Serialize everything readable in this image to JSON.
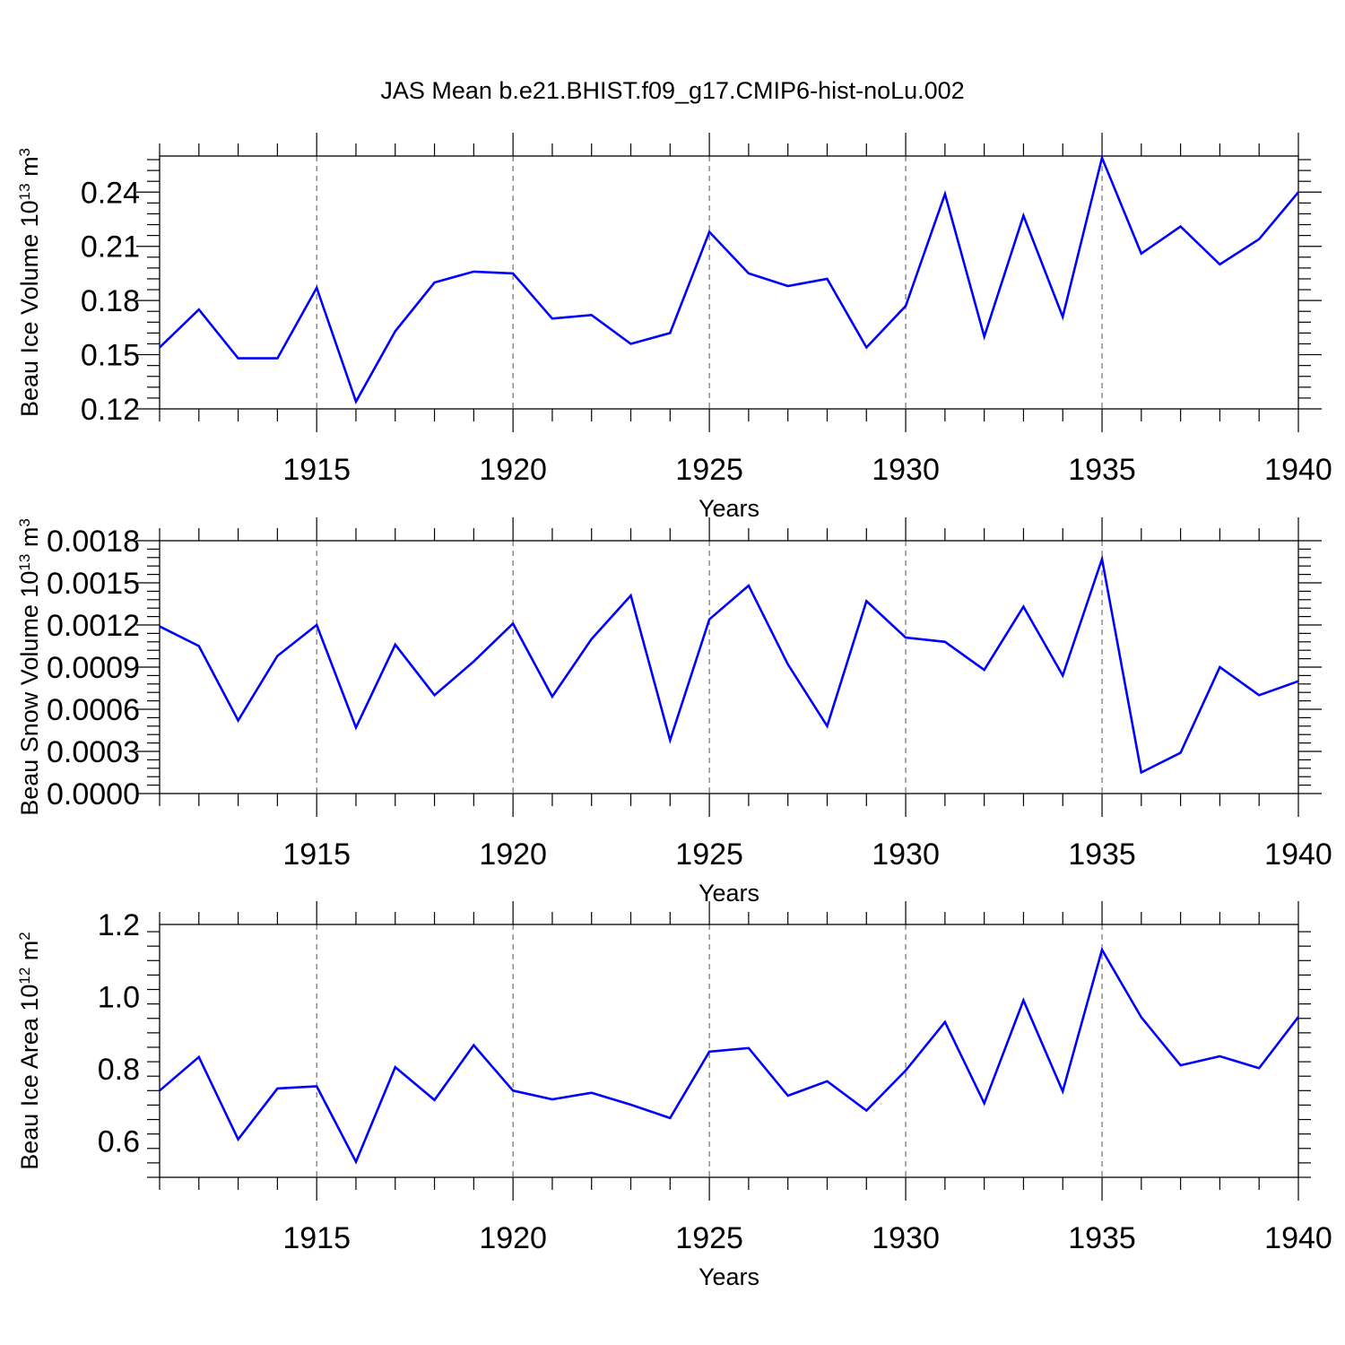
{
  "title": "JAS Mean b.e21.BHIST.f09_g17.CMIP6-hist-noLu.002",
  "colors": {
    "line": "#0000ff",
    "grid": "#555555",
    "axes": "#000000"
  },
  "chart_data": [
    {
      "type": "line",
      "ylabel_text": "Beau Ice Volume 10",
      "ylabel_exp": "13",
      "ylabel_unit": " m",
      "ylabel_unit_exp": "3",
      "xlabel": "Years",
      "xlim": [
        1911,
        1940
      ],
      "ylim": [
        0.12,
        0.26
      ],
      "yticks": [
        0.12,
        0.15,
        0.18,
        0.21,
        0.24
      ],
      "ytick_labels": [
        "0.12",
        "0.15",
        "0.18",
        "0.21",
        "0.24"
      ],
      "xticks": [
        1915,
        1920,
        1925,
        1930,
        1935,
        1940
      ],
      "xtick_labels": [
        "1915",
        "1920",
        "1925",
        "1930",
        "1935",
        "1940"
      ],
      "x": [
        1911,
        1912,
        1913,
        1914,
        1915,
        1916,
        1917,
        1918,
        1919,
        1920,
        1921,
        1922,
        1923,
        1924,
        1925,
        1926,
        1927,
        1928,
        1929,
        1930,
        1931,
        1932,
        1933,
        1934,
        1935,
        1936,
        1937,
        1938,
        1939,
        1940
      ],
      "values": [
        0.154,
        0.175,
        0.148,
        0.148,
        0.187,
        0.124,
        0.163,
        0.19,
        0.196,
        0.195,
        0.17,
        0.172,
        0.156,
        0.162,
        0.218,
        0.195,
        0.188,
        0.192,
        0.154,
        0.177,
        0.239,
        0.16,
        0.227,
        0.171,
        0.259,
        0.206,
        0.221,
        0.2,
        0.214,
        0.24
      ]
    },
    {
      "type": "line",
      "ylabel_text": "Beau Snow Volume 10",
      "ylabel_exp": "13",
      "ylabel_unit": " m",
      "ylabel_unit_exp": "3",
      "xlabel": "Years",
      "xlim": [
        1911,
        1940
      ],
      "ylim": [
        0.0,
        0.0018
      ],
      "yticks": [
        0.0,
        0.0003,
        0.0006,
        0.0009,
        0.0012,
        0.0015,
        0.0018
      ],
      "ytick_labels": [
        "0.0000",
        "0.0003",
        "0.0006",
        "0.0009",
        "0.0012",
        "0.0015",
        "0.0018"
      ],
      "xticks": [
        1915,
        1920,
        1925,
        1930,
        1935,
        1940
      ],
      "xtick_labels": [
        "1915",
        "1920",
        "1925",
        "1930",
        "1935",
        "1940"
      ],
      "x": [
        1911,
        1912,
        1913,
        1914,
        1915,
        1916,
        1917,
        1918,
        1919,
        1920,
        1921,
        1922,
        1923,
        1924,
        1925,
        1926,
        1927,
        1928,
        1929,
        1930,
        1931,
        1932,
        1933,
        1934,
        1935,
        1936,
        1937,
        1938,
        1939,
        1940
      ],
      "values": [
        0.00119,
        0.00105,
        0.00052,
        0.00098,
        0.0012,
        0.00047,
        0.00106,
        0.0007,
        0.00094,
        0.00121,
        0.00069,
        0.0011,
        0.00141,
        0.00038,
        0.00124,
        0.00148,
        0.00092,
        0.00048,
        0.00137,
        0.00111,
        0.00108,
        0.00088,
        0.00133,
        0.00084,
        0.00167,
        0.00015,
        0.00029,
        0.0009,
        0.0007,
        0.0008
      ]
    },
    {
      "type": "line",
      "ylabel_text": "Beau Ice Area 10",
      "ylabel_exp": "12",
      "ylabel_unit": " m",
      "ylabel_unit_exp": "2",
      "xlabel": "Years",
      "xlim": [
        1911,
        1940
      ],
      "ylim": [
        0.5,
        1.2
      ],
      "yticks": [
        0.6,
        0.8,
        1.0,
        1.2
      ],
      "ytick_labels": [
        "0.6",
        "0.8",
        "1.0",
        "1.2"
      ],
      "xticks": [
        1915,
        1920,
        1925,
        1930,
        1935,
        1940
      ],
      "xtick_labels": [
        "1915",
        "1920",
        "1925",
        "1930",
        "1935",
        "1940"
      ],
      "x": [
        1911,
        1912,
        1913,
        1914,
        1915,
        1916,
        1917,
        1918,
        1919,
        1920,
        1921,
        1922,
        1923,
        1924,
        1925,
        1926,
        1927,
        1928,
        1929,
        1930,
        1931,
        1932,
        1933,
        1934,
        1935,
        1936,
        1937,
        1938,
        1939,
        1940
      ],
      "values": [
        0.74,
        0.833,
        0.605,
        0.746,
        0.752,
        0.543,
        0.805,
        0.714,
        0.866,
        0.74,
        0.716,
        0.734,
        0.701,
        0.664,
        0.848,
        0.858,
        0.726,
        0.766,
        0.685,
        0.796,
        0.93,
        0.705,
        0.99,
        0.738,
        1.13,
        0.943,
        0.81,
        0.835,
        0.802,
        0.944
      ]
    }
  ]
}
